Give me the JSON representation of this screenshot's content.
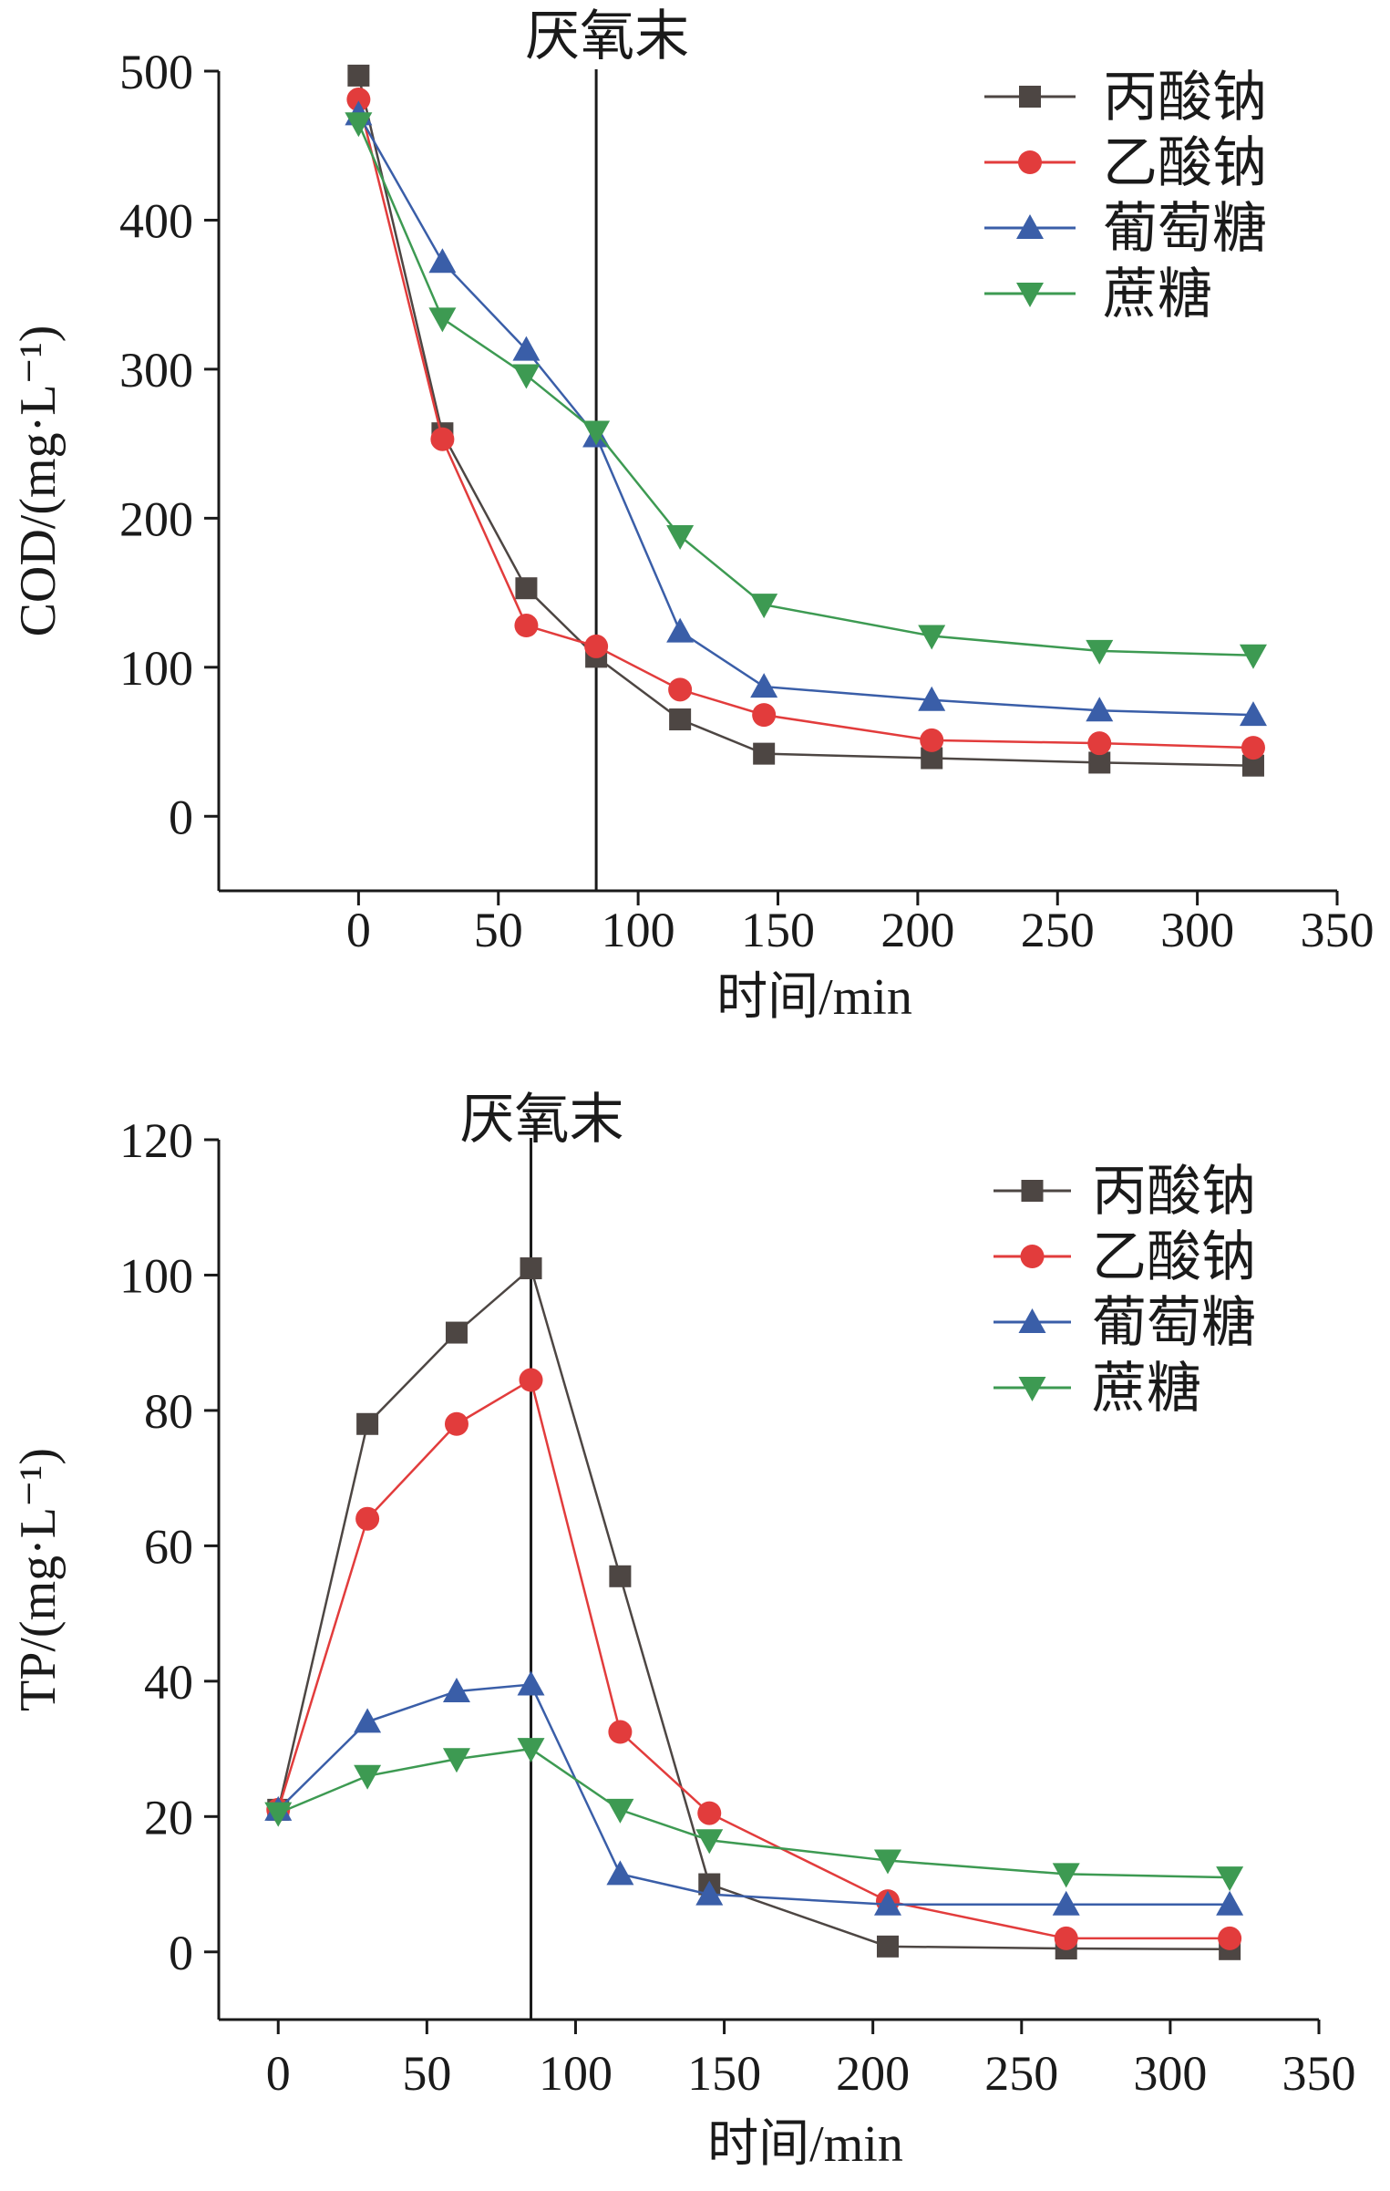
{
  "chart_data": [
    {
      "type": "line",
      "ylabel": "COD/(mg·L⁻¹)",
      "xlabel": "时间/min",
      "xlim": [
        -50,
        350
      ],
      "ylim": [
        -50,
        500
      ],
      "xticks": [
        0,
        50,
        100,
        150,
        200,
        250,
        300,
        350
      ],
      "yticks": [
        0,
        100,
        200,
        300,
        400,
        500
      ],
      "legend_position": "top-right",
      "grid": false,
      "annotation": {
        "label": "厌氧末",
        "x": 85
      },
      "series": [
        {
          "name": "丙酸钠",
          "color": "#4d4643",
          "marker": "square",
          "x": [
            0,
            30,
            60,
            85,
            115,
            145,
            205,
            265,
            320
          ],
          "y": [
            497,
            257,
            153,
            107,
            65,
            42,
            39,
            36,
            34
          ]
        },
        {
          "name": "乙酸钠",
          "color": "#e23c3c",
          "marker": "circle",
          "x": [
            0,
            30,
            60,
            85,
            115,
            145,
            205,
            265,
            320
          ],
          "y": [
            481,
            253,
            128,
            114,
            85,
            68,
            51,
            49,
            46
          ]
        },
        {
          "name": "葡萄糖",
          "color": "#3a5ea8",
          "marker": "triangle-up",
          "x": [
            0,
            30,
            60,
            85,
            115,
            145,
            205,
            265,
            320
          ],
          "y": [
            471,
            372,
            313,
            255,
            124,
            87,
            78,
            71,
            68
          ]
        },
        {
          "name": "蔗糖",
          "color": "#3d9a52",
          "marker": "triangle-down",
          "x": [
            0,
            30,
            60,
            85,
            115,
            145,
            205,
            265,
            320
          ],
          "y": [
            465,
            334,
            296,
            258,
            188,
            142,
            121,
            111,
            108
          ]
        }
      ]
    },
    {
      "type": "line",
      "ylabel": "TP/(mg·L⁻¹)",
      "xlabel": "时间/min",
      "xlim": [
        -20,
        350
      ],
      "ylim": [
        -10,
        120
      ],
      "xticks": [
        0,
        50,
        100,
        150,
        200,
        250,
        300,
        350
      ],
      "yticks": [
        0,
        20,
        40,
        60,
        80,
        100,
        120
      ],
      "legend_position": "top-right",
      "grid": false,
      "annotation": {
        "label": "厌氧末",
        "x": 85
      },
      "series": [
        {
          "name": "丙酸钠",
          "color": "#4d4643",
          "marker": "square",
          "x": [
            0,
            30,
            60,
            85,
            115,
            145,
            205,
            265,
            320
          ],
          "y": [
            21,
            78,
            91.5,
            101,
            55.5,
            10,
            0.8,
            0.5,
            0.4
          ]
        },
        {
          "name": "乙酸钠",
          "color": "#e23c3c",
          "marker": "circle",
          "x": [
            0,
            30,
            60,
            85,
            115,
            145,
            205,
            265,
            320
          ],
          "y": [
            21,
            64,
            78,
            84.5,
            32.5,
            20.5,
            7.5,
            2,
            2
          ]
        },
        {
          "name": "葡萄糖",
          "color": "#3a5ea8",
          "marker": "triangle-up",
          "x": [
            0,
            30,
            60,
            85,
            115,
            145,
            205,
            265,
            320
          ],
          "y": [
            21,
            34,
            38.5,
            39.5,
            11.5,
            8.5,
            7,
            7,
            7
          ]
        },
        {
          "name": "蔗糖",
          "color": "#3d9a52",
          "marker": "triangle-down",
          "x": [
            0,
            30,
            60,
            85,
            115,
            145,
            205,
            265,
            320
          ],
          "y": [
            20.5,
            26,
            28.5,
            30,
            21,
            16.5,
            13.5,
            11.5,
            11
          ]
        }
      ]
    }
  ]
}
